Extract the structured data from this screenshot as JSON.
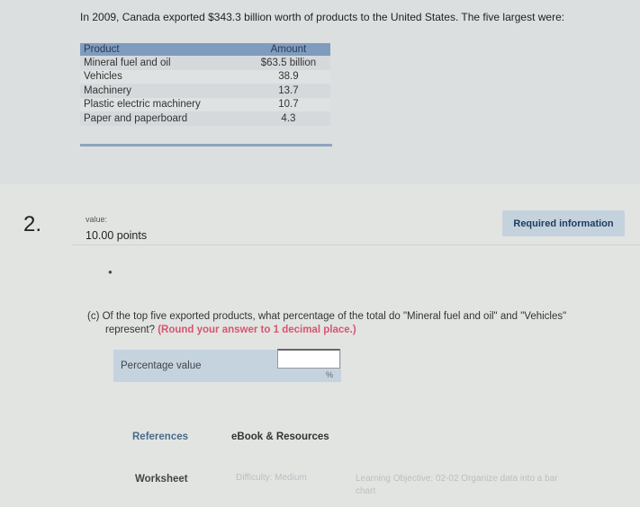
{
  "intro": "In 2009, Canada exported $343.3 billion worth of products to the United States. The five largest were:",
  "table": {
    "headers": [
      "Product",
      "Amount"
    ],
    "rows": [
      [
        "Mineral fuel and oil",
        "$63.5 billion"
      ],
      [
        "Vehicles",
        "38.9"
      ],
      [
        "Machinery",
        "13.7"
      ],
      [
        "Plastic electric machinery",
        "10.7"
      ],
      [
        "Paper and paperboard",
        "4.3"
      ]
    ]
  },
  "question": {
    "number": "2.",
    "value_label": "value:",
    "points": "10.00 points",
    "required_button": "Required information",
    "text": "(c) Of the top five exported products, what percentage of the total do \"Mineral fuel and oil\" and \"Vehicles\"",
    "text2": "represent?",
    "round_note": "(Round your answer to 1 decimal place.)",
    "answer_label": "Percentage value",
    "answer_value": "",
    "unit": "%"
  },
  "links": {
    "references": "References",
    "ebook": "eBook & Resources"
  },
  "footer": {
    "worksheet": "Worksheet",
    "difficulty": "Difficulty: Medium",
    "learning_objective": "Learning Objective: 02-02 Organize data into a bar chart"
  }
}
